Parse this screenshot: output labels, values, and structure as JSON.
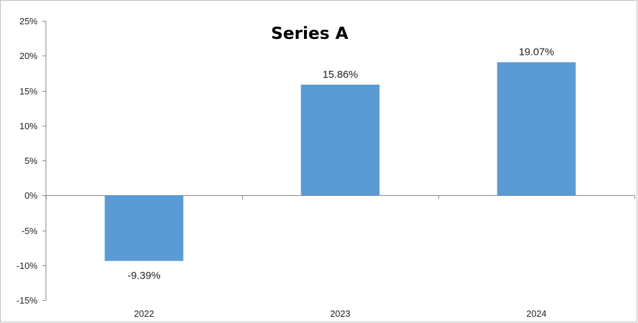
{
  "chart_data": {
    "type": "bar",
    "title": "Series A",
    "xlabel": "",
    "ylabel": "",
    "categories": [
      "2022",
      "2023",
      "2024"
    ],
    "series": [
      {
        "values": [
          -9.39,
          15.86,
          19.07
        ],
        "data_labels": [
          "-9.39%",
          "15.86%",
          "19.07%"
        ]
      }
    ],
    "ylim": [
      -15,
      25
    ],
    "y_ticks": [
      25,
      20,
      15,
      10,
      5,
      0,
      -5,
      -10,
      -15
    ],
    "y_tick_labels": [
      "25%",
      "20%",
      "15%",
      "10%",
      "5%",
      "0%",
      "-5%",
      "-10%",
      "-15%"
    ],
    "grid": false,
    "legend": "none",
    "colors": {
      "bar": "#5b9bd5",
      "axis": "#868686",
      "frame": "#bfbfbf"
    }
  }
}
